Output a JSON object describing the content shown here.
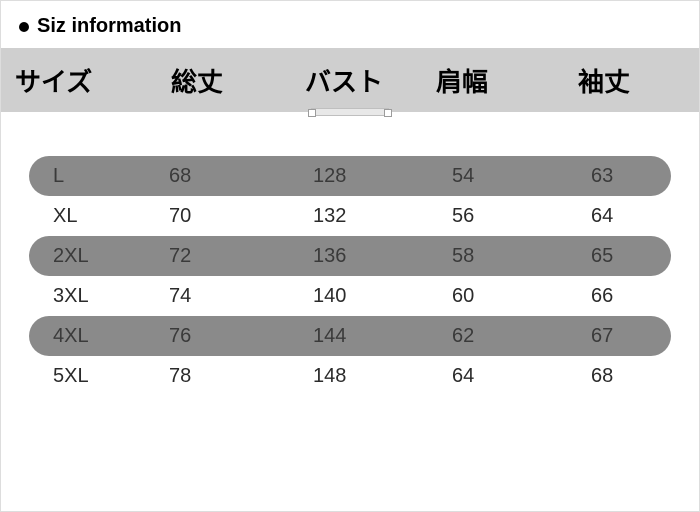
{
  "title": "Siz information",
  "table": {
    "type": "table",
    "header_bg": "#cfcfcf",
    "row_shade_bg": "#8a8a8a",
    "row_shade_radius": 20,
    "columns": [
      "サイズ",
      "総丈",
      "バスト",
      "肩幅",
      "袖丈"
    ],
    "header_fontsize": 26,
    "cell_fontsize": 20,
    "rows": [
      {
        "size": "L",
        "length": "68",
        "bust": "128",
        "shoulder": "54",
        "sleeve": "63",
        "shaded": true
      },
      {
        "size": "XL",
        "length": "70",
        "bust": "132",
        "shoulder": "56",
        "sleeve": "64",
        "shaded": false
      },
      {
        "size": "2XL",
        "length": "72",
        "bust": "136",
        "shoulder": "58",
        "sleeve": "65",
        "shaded": true
      },
      {
        "size": "3XL",
        "length": "74",
        "bust": "140",
        "shoulder": "60",
        "sleeve": "66",
        "shaded": false
      },
      {
        "size": "4XL",
        "length": "76",
        "bust": "144",
        "shoulder": "62",
        "sleeve": "67",
        "shaded": true
      },
      {
        "size": "5XL",
        "length": "78",
        "bust": "148",
        "shoulder": "64",
        "sleeve": "68",
        "shaded": false
      }
    ]
  }
}
